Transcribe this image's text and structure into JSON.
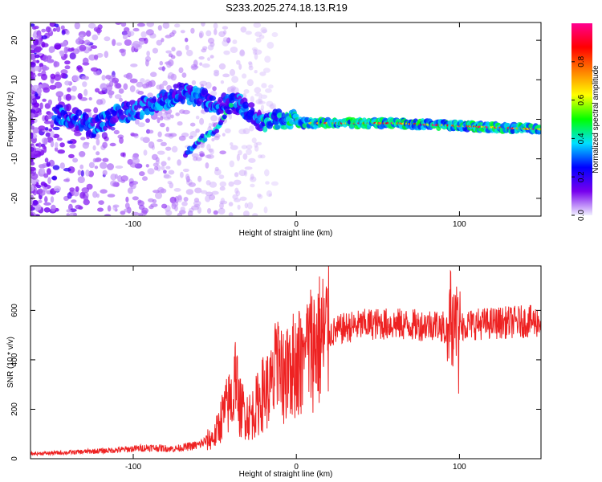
{
  "title": "S233.2025.274.18.13.R19",
  "chart_data": [
    {
      "type": "heatmap",
      "xlabel": "Height of straight line (km)",
      "ylabel": "Frequency (Hz)",
      "xlim": [
        -163,
        150
      ],
      "ylim": [
        -24.5,
        24.5
      ],
      "xticks": [
        -100,
        0,
        100
      ],
      "xtick_labels": [
        "-100",
        "0",
        "100"
      ],
      "yticks": [
        -20,
        -10,
        0,
        10,
        20
      ],
      "ytick_labels": [
        "-20",
        "-10",
        "0",
        "10",
        "20"
      ],
      "colorbar": {
        "label": "Normalized spectral amplitude",
        "range": [
          0,
          1
        ],
        "ticks": [
          0.0,
          0.2,
          0.4,
          0.6,
          0.8
        ],
        "tick_labels": [
          "0.0",
          "0.2",
          "0.4",
          "0.6",
          "0.8"
        ],
        "colormap": [
          "#f0f0ff",
          "#7700ee",
          "#0000ff",
          "#00e0ff",
          "#00ff00",
          "#ffff00",
          "#ff8000",
          "#ff0000",
          "#ff0090"
        ]
      },
      "ridge": [
        {
          "x": -140,
          "y": 1
        },
        {
          "x": -125,
          "y": -2
        },
        {
          "x": -110,
          "y": 1
        },
        {
          "x": -95,
          "y": 3
        },
        {
          "x": -80,
          "y": 5
        },
        {
          "x": -70,
          "y": 7
        },
        {
          "x": -50,
          "y": 4
        },
        {
          "x": -35,
          "y": 4
        },
        {
          "x": -20,
          "y": -1
        },
        {
          "x": -8,
          "y": 0
        },
        {
          "x": 5,
          "y": -1
        },
        {
          "x": 30,
          "y": -1
        },
        {
          "x": 60,
          "y": -1
        },
        {
          "x": 90,
          "y": -1.5
        },
        {
          "x": 120,
          "y": -2
        },
        {
          "x": 148,
          "y": -2.5
        }
      ],
      "secondary_branch": [
        {
          "x": -68,
          "y": -9
        },
        {
          "x": -58,
          "y": -5
        },
        {
          "x": -48,
          "y": -2
        },
        {
          "x": -40,
          "y": 3
        }
      ]
    },
    {
      "type": "line",
      "xlabel": "Height of straight line (km)",
      "ylabel": "SNR (10 * v/v)",
      "xlim": [
        -163,
        150
      ],
      "ylim": [
        0,
        780
      ],
      "xticks": [
        -100,
        0,
        100
      ],
      "xtick_labels": [
        "-100",
        "0",
        "100"
      ],
      "yticks": [
        0,
        200,
        400,
        600
      ],
      "ytick_labels": [
        "0",
        "200",
        "400",
        "600"
      ],
      "line_color": "#ee2222",
      "envelope": [
        {
          "x": -163,
          "y": 20
        },
        {
          "x": -140,
          "y": 25
        },
        {
          "x": -110,
          "y": 35
        },
        {
          "x": -90,
          "y": 45
        },
        {
          "x": -75,
          "y": 40
        },
        {
          "x": -60,
          "y": 55
        },
        {
          "x": -50,
          "y": 90
        },
        {
          "x": -45,
          "y": 180
        },
        {
          "x": -40,
          "y": 240
        },
        {
          "x": -35,
          "y": 210
        },
        {
          "x": -28,
          "y": 170
        },
        {
          "x": -20,
          "y": 270
        },
        {
          "x": -12,
          "y": 300
        },
        {
          "x": -5,
          "y": 360
        },
        {
          "x": 2,
          "y": 400
        },
        {
          "x": 10,
          "y": 460
        },
        {
          "x": 20,
          "y": 505
        },
        {
          "x": 30,
          "y": 530
        },
        {
          "x": 45,
          "y": 545
        },
        {
          "x": 60,
          "y": 545
        },
        {
          "x": 75,
          "y": 540
        },
        {
          "x": 85,
          "y": 545
        },
        {
          "x": 95,
          "y": 520
        },
        {
          "x": 100,
          "y": 540
        },
        {
          "x": 110,
          "y": 545
        },
        {
          "x": 125,
          "y": 550
        },
        {
          "x": 140,
          "y": 555
        },
        {
          "x": 150,
          "y": 555
        }
      ],
      "peaks": [
        {
          "x": -37,
          "y": 480
        },
        {
          "x": -12,
          "y": 560
        },
        {
          "x": -5,
          "y": 535
        },
        {
          "x": 5,
          "y": 530
        },
        {
          "x": 95,
          "y": 760
        },
        {
          "x": 98,
          "y": 700
        }
      ]
    }
  ]
}
